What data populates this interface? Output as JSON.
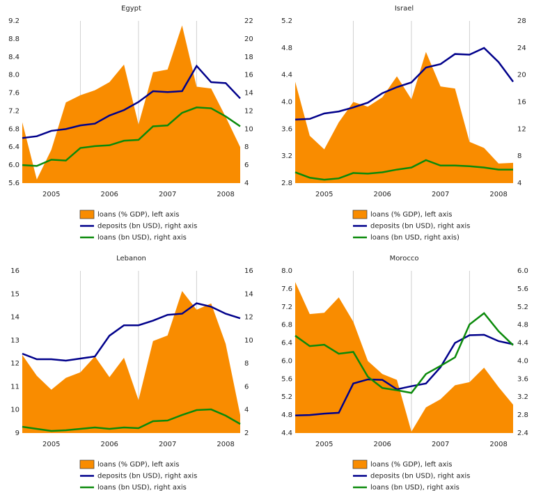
{
  "chart_data": [
    {
      "type": "line",
      "title": "Egypt",
      "x": [
        2005,
        2005.25,
        2005.5,
        2005.75,
        2006,
        2006.25,
        2006.5,
        2006.75,
        2007,
        2007.25,
        2007.5,
        2007.75,
        2008,
        2008.25,
        2008.5,
        2008.75
      ],
      "xlim": [
        2005,
        2008.75
      ],
      "xticks": [
        2005,
        2006,
        2007,
        2008
      ],
      "grid": true,
      "ylim": [
        5.6,
        9.2
      ],
      "yticks": [
        5.6,
        {
          "value": 6.0,
          "label": "6.0"
        },
        6.4,
        6.8,
        7.2,
        7.6,
        {
          "value": 8.0,
          "label": "8.0"
        },
        8.4,
        8.8,
        9.2
      ],
      "y2lim": [
        4,
        22
      ],
      "y2ticks": [
        4,
        6,
        8,
        10,
        12,
        14,
        16,
        18,
        20,
        22
      ],
      "series": [
        {
          "name": "loans (% GDP), left axis",
          "type": "area",
          "color": "#f98c00",
          "values": [
            6.95,
            5.68,
            6.34,
            7.39,
            7.55,
            7.66,
            7.84,
            8.23,
            6.9,
            8.06,
            8.12,
            9.1,
            7.74,
            7.7,
            7.07,
            6.4
          ]
        },
        {
          "name": "deposits (bn USD), right axis",
          "type": "line",
          "axis": "y2",
          "color": "#00008b",
          "values": [
            9.0,
            9.2,
            9.8,
            10.0,
            10.4,
            10.6,
            11.5,
            12.1,
            13.0,
            14.2,
            14.1,
            14.2,
            17.0,
            15.2,
            15.1,
            13.4
          ]
        },
        {
          "name": "loans (bn USD), right axis",
          "type": "line",
          "axis": "y2",
          "color": "#0a8a0a",
          "values": [
            6.0,
            5.9,
            6.6,
            6.5,
            7.9,
            8.1,
            8.2,
            8.7,
            8.8,
            10.3,
            10.4,
            11.8,
            12.4,
            12.3,
            11.4,
            10.3
          ]
        }
      ]
    },
    {
      "type": "line",
      "title": "Israel",
      "x": [
        2005,
        2005.25,
        2005.5,
        2005.75,
        2006,
        2006.25,
        2006.5,
        2006.75,
        2007,
        2007.25,
        2007.5,
        2007.75,
        2008,
        2008.25,
        2008.5,
        2008.75
      ],
      "xlim": [
        2005,
        2008.75
      ],
      "xticks": [
        2005,
        2006,
        2007,
        2008
      ],
      "grid": true,
      "ylim": [
        2.8,
        5.2
      ],
      "yticks": [
        2.8,
        3.2,
        3.6,
        {
          "value": 4.0,
          "label": "4.0"
        },
        4.4,
        4.8,
        5.2
      ],
      "y2lim": [
        4,
        28
      ],
      "y2ticks": [
        4,
        8,
        12,
        16,
        20,
        24,
        28
      ],
      "series": [
        {
          "name": "loans (% GDP), left axis",
          "type": "area",
          "color": "#f98c00",
          "values": [
            4.3,
            3.5,
            3.3,
            3.7,
            4.0,
            3.93,
            4.07,
            4.38,
            4.04,
            4.74,
            4.23,
            4.2,
            3.41,
            3.32,
            3.09,
            3.1
          ]
        },
        {
          "name": "deposits (bn USD), right axis",
          "type": "line",
          "axis": "y2",
          "color": "#00008b",
          "values": [
            13.4,
            13.5,
            14.3,
            14.6,
            15.2,
            15.9,
            17.3,
            18.2,
            18.9,
            21.1,
            21.6,
            23.1,
            23.0,
            24.0,
            21.9,
            19.0
          ]
        },
        {
          "name": "loans (bn USD, right axis)",
          "type": "line",
          "axis": "y2",
          "color": "#0a8a0a",
          "values": [
            5.6,
            4.8,
            4.5,
            4.7,
            5.5,
            5.4,
            5.6,
            6.0,
            6.3,
            7.4,
            6.6,
            6.6,
            6.5,
            6.3,
            6.0,
            6.0
          ]
        }
      ]
    },
    {
      "type": "line",
      "title": "Lebanon",
      "x": [
        2005,
        2005.25,
        2005.5,
        2005.75,
        2006,
        2006.25,
        2006.5,
        2006.75,
        2007,
        2007.25,
        2007.5,
        2007.75,
        2008,
        2008.25,
        2008.5,
        2008.75
      ],
      "xlim": [
        2005,
        2008.75
      ],
      "xticks": [
        2005,
        2006,
        2007,
        2008
      ],
      "grid": true,
      "ylim": [
        9,
        16
      ],
      "yticks": [
        9,
        10,
        11,
        12,
        13,
        14,
        15,
        16
      ],
      "y2lim": [
        2,
        16
      ],
      "y2ticks": [
        2,
        4,
        6,
        8,
        10,
        12,
        14,
        16
      ],
      "series": [
        {
          "name": "loans (% GDP), left axis",
          "type": "area",
          "color": "#f98c00",
          "values": [
            12.37,
            11.47,
            10.87,
            11.38,
            11.62,
            12.31,
            11.41,
            12.25,
            10.42,
            12.97,
            13.21,
            15.13,
            14.32,
            14.59,
            12.85,
            9.78
          ]
        },
        {
          "name": "deposits (bn USD), right axis",
          "type": "line",
          "axis": "y2",
          "color": "#00008b",
          "values": [
            8.85,
            8.37,
            8.37,
            8.25,
            8.43,
            8.61,
            10.4,
            11.3,
            11.3,
            11.7,
            12.2,
            12.3,
            13.2,
            12.9,
            12.3,
            11.9
          ]
        },
        {
          "name": "loans (bn USD), right axis",
          "type": "line",
          "axis": "y2",
          "color": "#0a8a0a",
          "values": [
            2.54,
            2.36,
            2.18,
            2.24,
            2.36,
            2.48,
            2.36,
            2.48,
            2.42,
            3.02,
            3.08,
            3.56,
            3.98,
            4.04,
            3.5,
            2.78
          ]
        }
      ]
    },
    {
      "type": "line",
      "title": "Morocco",
      "x": [
        2005,
        2005.25,
        2005.5,
        2005.75,
        2006,
        2006.25,
        2006.5,
        2006.75,
        2007,
        2007.25,
        2007.5,
        2007.75,
        2008,
        2008.25,
        2008.5,
        2008.75
      ],
      "xlim": [
        2005,
        2008.75
      ],
      "xticks": [
        2005,
        2006,
        2007,
        2008
      ],
      "grid": true,
      "ylim": [
        4.4,
        8.0
      ],
      "yticks": [
        4.4,
        4.8,
        5.2,
        5.6,
        {
          "value": 6.0,
          "label": "6.0"
        },
        6.4,
        6.8,
        7.2,
        7.6,
        {
          "value": 8.0,
          "label": "8.0"
        }
      ],
      "y2lim": [
        2.4,
        6.0
      ],
      "y2ticks": [
        2.4,
        2.8,
        3.2,
        3.6,
        {
          "value": 4.0,
          "label": "4.0"
        },
        4.4,
        4.8,
        5.2,
        5.6,
        {
          "value": 6.0,
          "label": "6.0"
        }
      ],
      "series": [
        {
          "name": "loans (% GDP), left axis",
          "type": "area",
          "color": "#f98c00",
          "values": [
            7.75,
            7.04,
            7.07,
            7.41,
            6.87,
            6.0,
            5.71,
            5.58,
            4.43,
            4.97,
            5.15,
            5.46,
            5.53,
            5.85,
            5.42,
            5.03
          ]
        },
        {
          "name": "deposits (bn USD), right axis",
          "type": "line",
          "axis": "y2",
          "color": "#00008b",
          "values": [
            2.79,
            2.8,
            2.83,
            2.85,
            3.5,
            3.59,
            3.58,
            3.37,
            3.44,
            3.5,
            3.86,
            4.4,
            4.57,
            4.58,
            4.44,
            4.37
          ]
        },
        {
          "name": "loans (bn USD), right axis",
          "type": "line",
          "axis": "y2",
          "color": "#0a8a0a",
          "values": [
            4.56,
            4.33,
            4.36,
            4.16,
            4.2,
            3.65,
            3.4,
            3.35,
            3.29,
            3.71,
            3.89,
            4.08,
            4.81,
            5.06,
            4.66,
            4.35
          ]
        }
      ]
    }
  ]
}
